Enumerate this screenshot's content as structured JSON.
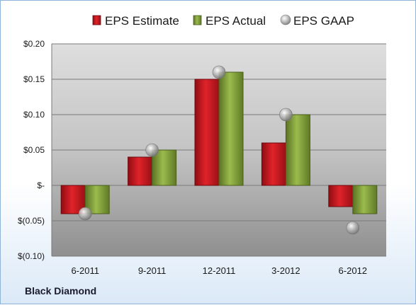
{
  "chart_data": {
    "type": "bar",
    "categories": [
      "6-2011",
      "9-2011",
      "12-2011",
      "3-2012",
      "6-2012"
    ],
    "series": [
      {
        "name": "EPS Estimate",
        "kind": "bar",
        "values": [
          -0.04,
          0.04,
          0.15,
          0.06,
          -0.03
        ],
        "color": "#c0141b"
      },
      {
        "name": "EPS Actual",
        "kind": "bar",
        "values": [
          -0.04,
          0.05,
          0.16,
          0.1,
          -0.04
        ],
        "color": "#7d9a35"
      },
      {
        "name": "EPS GAAP",
        "kind": "marker",
        "values": [
          -0.04,
          0.05,
          0.16,
          0.1,
          -0.06
        ],
        "color": "#a6a6a6"
      }
    ],
    "yticks": [
      {
        "value": 0.2,
        "label": "$0.20"
      },
      {
        "value": 0.15,
        "label": "$0.15"
      },
      {
        "value": 0.1,
        "label": "$0.10"
      },
      {
        "value": 0.05,
        "label": "$0.05"
      },
      {
        "value": 0.0,
        "label": "$-"
      },
      {
        "value": -0.05,
        "label": "$(0.05)"
      },
      {
        "value": -0.1,
        "label": "$(0.10)"
      }
    ],
    "ylim": [
      -0.1,
      0.2
    ],
    "grid": true,
    "legend": "top"
  },
  "company": "Black Diamond"
}
